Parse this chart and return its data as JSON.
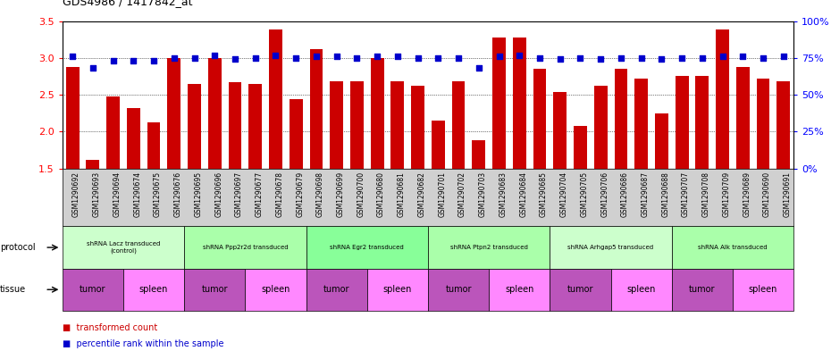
{
  "title": "GDS4986 / 1417842_at",
  "samples": [
    "GSM1290692",
    "GSM1290693",
    "GSM1290694",
    "GSM1290674",
    "GSM1290675",
    "GSM1290676",
    "GSM1290695",
    "GSM1290696",
    "GSM1290697",
    "GSM1290677",
    "GSM1290678",
    "GSM1290679",
    "GSM1290698",
    "GSM1290699",
    "GSM1290700",
    "GSM1290680",
    "GSM1290681",
    "GSM1290682",
    "GSM1290701",
    "GSM1290702",
    "GSM1290703",
    "GSM1290683",
    "GSM1290684",
    "GSM1290685",
    "GSM1290704",
    "GSM1290705",
    "GSM1290706",
    "GSM1290686",
    "GSM1290687",
    "GSM1290688",
    "GSM1290707",
    "GSM1290708",
    "GSM1290709",
    "GSM1290689",
    "GSM1290690",
    "GSM1290691"
  ],
  "bar_values": [
    2.88,
    1.62,
    2.48,
    2.32,
    2.12,
    3.0,
    2.65,
    3.0,
    2.67,
    2.65,
    3.38,
    2.44,
    3.12,
    2.68,
    2.68,
    3.0,
    2.68,
    2.62,
    2.15,
    2.68,
    1.88,
    3.28,
    3.28,
    2.85,
    2.54,
    2.08,
    2.62,
    2.85,
    2.72,
    2.25,
    2.75,
    2.75,
    3.38,
    2.88,
    2.72,
    2.68
  ],
  "percentile_values": [
    76,
    68,
    73,
    73,
    73,
    75,
    75,
    77,
    74,
    75,
    77,
    75,
    76,
    76,
    75,
    76,
    76,
    75,
    75,
    75,
    68,
    76,
    77,
    75,
    74,
    75,
    74,
    75,
    75,
    74,
    75,
    75,
    76,
    76,
    75,
    76
  ],
  "ylim_left": [
    1.5,
    3.5
  ],
  "ylim_right": [
    0,
    100
  ],
  "yticks_left": [
    1.5,
    2.0,
    2.5,
    3.0,
    3.5
  ],
  "yticks_right": [
    0,
    25,
    50,
    75,
    100
  ],
  "bar_color": "#cc0000",
  "dot_color": "#0000cc",
  "protocols": [
    {
      "label": "shRNA Lacz transduced\n(control)",
      "start": 0,
      "end": 6,
      "color": "#ccffcc"
    },
    {
      "label": "shRNA Ppp2r2d transduced",
      "start": 6,
      "end": 12,
      "color": "#aaffaa"
    },
    {
      "label": "shRNA Egr2 transduced",
      "start": 12,
      "end": 18,
      "color": "#88ff99"
    },
    {
      "label": "shRNA Ptpn2 transduced",
      "start": 18,
      "end": 24,
      "color": "#aaffaa"
    },
    {
      "label": "shRNA Arhgap5 transduced",
      "start": 24,
      "end": 30,
      "color": "#ccffcc"
    },
    {
      "label": "shRNA Alk transduced",
      "start": 30,
      "end": 36,
      "color": "#aaffaa"
    }
  ],
  "tissues": [
    {
      "label": "tumor",
      "start": 0,
      "end": 3,
      "color": "#bb55bb"
    },
    {
      "label": "spleen",
      "start": 3,
      "end": 6,
      "color": "#ff88ff"
    },
    {
      "label": "tumor",
      "start": 6,
      "end": 9,
      "color": "#bb55bb"
    },
    {
      "label": "spleen",
      "start": 9,
      "end": 12,
      "color": "#ff88ff"
    },
    {
      "label": "tumor",
      "start": 12,
      "end": 15,
      "color": "#bb55bb"
    },
    {
      "label": "spleen",
      "start": 15,
      "end": 18,
      "color": "#ff88ff"
    },
    {
      "label": "tumor",
      "start": 18,
      "end": 21,
      "color": "#bb55bb"
    },
    {
      "label": "spleen",
      "start": 21,
      "end": 24,
      "color": "#ff88ff"
    },
    {
      "label": "tumor",
      "start": 24,
      "end": 27,
      "color": "#bb55bb"
    },
    {
      "label": "spleen",
      "start": 27,
      "end": 30,
      "color": "#ff88ff"
    },
    {
      "label": "tumor",
      "start": 30,
      "end": 33,
      "color": "#bb55bb"
    },
    {
      "label": "spleen",
      "start": 33,
      "end": 36,
      "color": "#ff88ff"
    }
  ],
  "grid_yticks": [
    2.0,
    2.5,
    3.0
  ],
  "dot_size": 22,
  "xtick_bg": "#d0d0d0",
  "fig_bg": "#ffffff"
}
